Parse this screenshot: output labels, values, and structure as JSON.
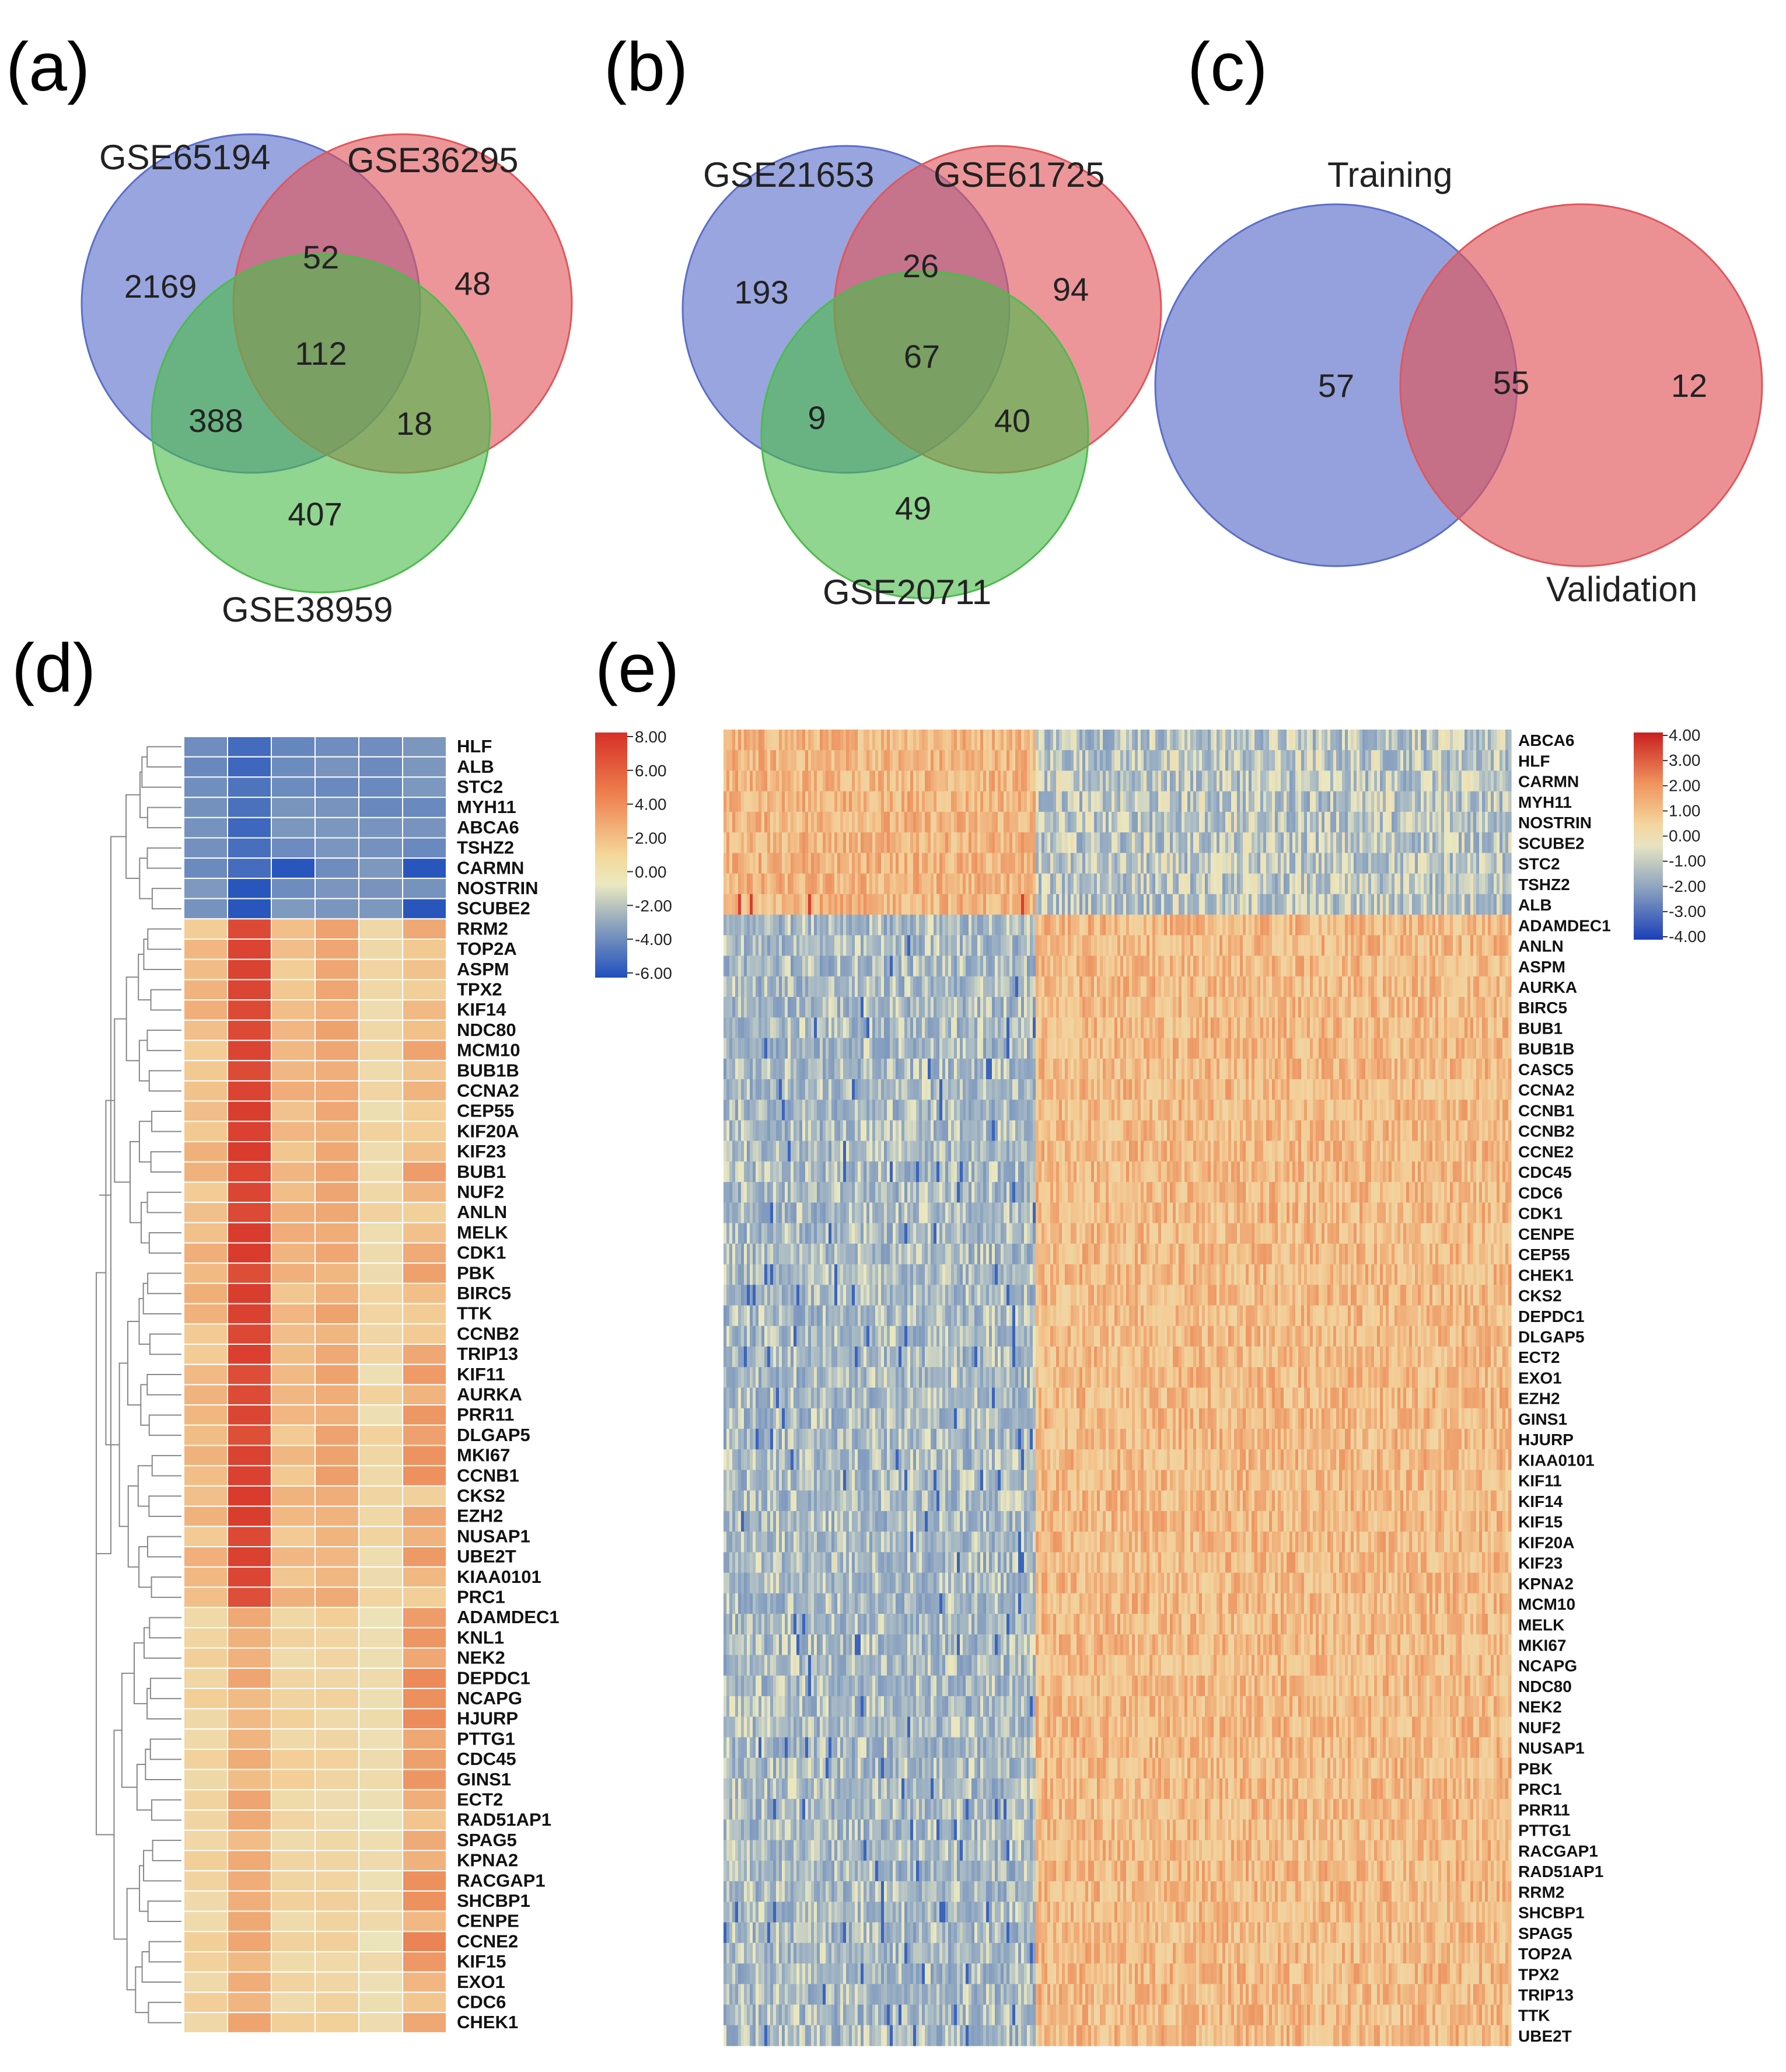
{
  "panel_labels": {
    "a": "(a)",
    "b": "(b)",
    "c": "(c)",
    "d": "(d)",
    "e": "(e)"
  },
  "venn_a": {
    "sets": [
      "GSE65194",
      "GSE36295",
      "GSE38959"
    ],
    "colors": [
      "#5b6ec9",
      "#e0565b",
      "#4cbb4c"
    ],
    "counts": {
      "only_1": "2169",
      "only_2": "48",
      "only_3": "407",
      "1_2": "52",
      "1_3": "388",
      "2_3": "18",
      "all": "112"
    }
  },
  "venn_b": {
    "sets": [
      "GSE21653",
      "GSE61725",
      "GSE20711"
    ],
    "colors": [
      "#5b6ec9",
      "#e0565b",
      "#4cbb4c"
    ],
    "counts": {
      "only_1": "193",
      "only_2": "94",
      "only_3": "49",
      "1_2": "26",
      "1_3": "9",
      "2_3": "40",
      "all": "67"
    }
  },
  "venn_c": {
    "sets": [
      "Training",
      "Validation"
    ],
    "colors": [
      "#5b6ec9",
      "#e0565b"
    ],
    "counts": {
      "only_1": "57",
      "both": "55",
      "only_2": "12"
    }
  },
  "heatmap_d": {
    "genes": [
      "HLF",
      "ALB",
      "STC2",
      "MYH11",
      "ABCA6",
      "TSHZ2",
      "CARMN",
      "NOSTRIN",
      "SCUBE2",
      "RRM2",
      "TOP2A",
      "ASPM",
      "TPX2",
      "KIF14",
      "NDC80",
      "MCM10",
      "BUB1B",
      "CCNA2",
      "CEP55",
      "KIF20A",
      "KIF23",
      "BUB1",
      "NUF2",
      "ANLN",
      "MELK",
      "CDK1",
      "PBK",
      "BIRC5",
      "TTK",
      "CCNB2",
      "TRIP13",
      "KIF11",
      "AURKA",
      "PRR11",
      "DLGAP5",
      "MKI67",
      "CCNB1",
      "CKS2",
      "EZH2",
      "NUSAP1",
      "UBE2T",
      "KIAA0101",
      "PRC1",
      "ADAMDEC1",
      "KNL1",
      "NEK2",
      "DEPDC1",
      "NCAPG",
      "HJURP",
      "PTTG1",
      "CDC45",
      "GINS1",
      "ECT2",
      "RAD51AP1",
      "SPAG5",
      "KPNA2",
      "RACGAP1",
      "SHCBP1",
      "CENPE",
      "CCNE2",
      "KIF15",
      "EXO1",
      "CDC6",
      "CHEK1"
    ],
    "n_columns": 6,
    "scale_ticks": [
      "8.00",
      "6.00",
      "4.00",
      "2.00",
      "0.00",
      "-2.00",
      "-4.00",
      "-6.00"
    ]
  },
  "heatmap_e": {
    "genes": [
      "ABCA6",
      "HLF",
      "CARMN",
      "MYH11",
      "NOSTRIN",
      "SCUBE2",
      "STC2",
      "TSHZ2",
      "ALB",
      "ADAMDEC1",
      "ANLN",
      "ASPM",
      "AURKA",
      "BIRC5",
      "BUB1",
      "BUB1B",
      "CASC5",
      "CCNA2",
      "CCNB1",
      "CCNB2",
      "CCNE2",
      "CDC45",
      "CDC6",
      "CDK1",
      "CENPE",
      "CEP55",
      "CHEK1",
      "CKS2",
      "DEPDC1",
      "DLGAP5",
      "ECT2",
      "EXO1",
      "EZH2",
      "GINS1",
      "HJURP",
      "KIAA0101",
      "KIF11",
      "KIF14",
      "KIF15",
      "KIF20A",
      "KIF23",
      "KPNA2",
      "MCM10",
      "MELK",
      "MKI67",
      "NCAPG",
      "NDC80",
      "NEK2",
      "NUF2",
      "NUSAP1",
      "PBK",
      "PRC1",
      "PRR11",
      "PTTG1",
      "RACGAP1",
      "RAD51AP1",
      "RRM2",
      "SHCBP1",
      "SPAG5",
      "TOP2A",
      "TPX2",
      "TRIP13",
      "TTK",
      "UBE2T"
    ],
    "scale_ticks": [
      "4.00",
      "3.00",
      "2.00",
      "1.00",
      "0.00",
      "-1.00",
      "-2.00",
      "-3.00",
      "-4.00"
    ]
  }
}
